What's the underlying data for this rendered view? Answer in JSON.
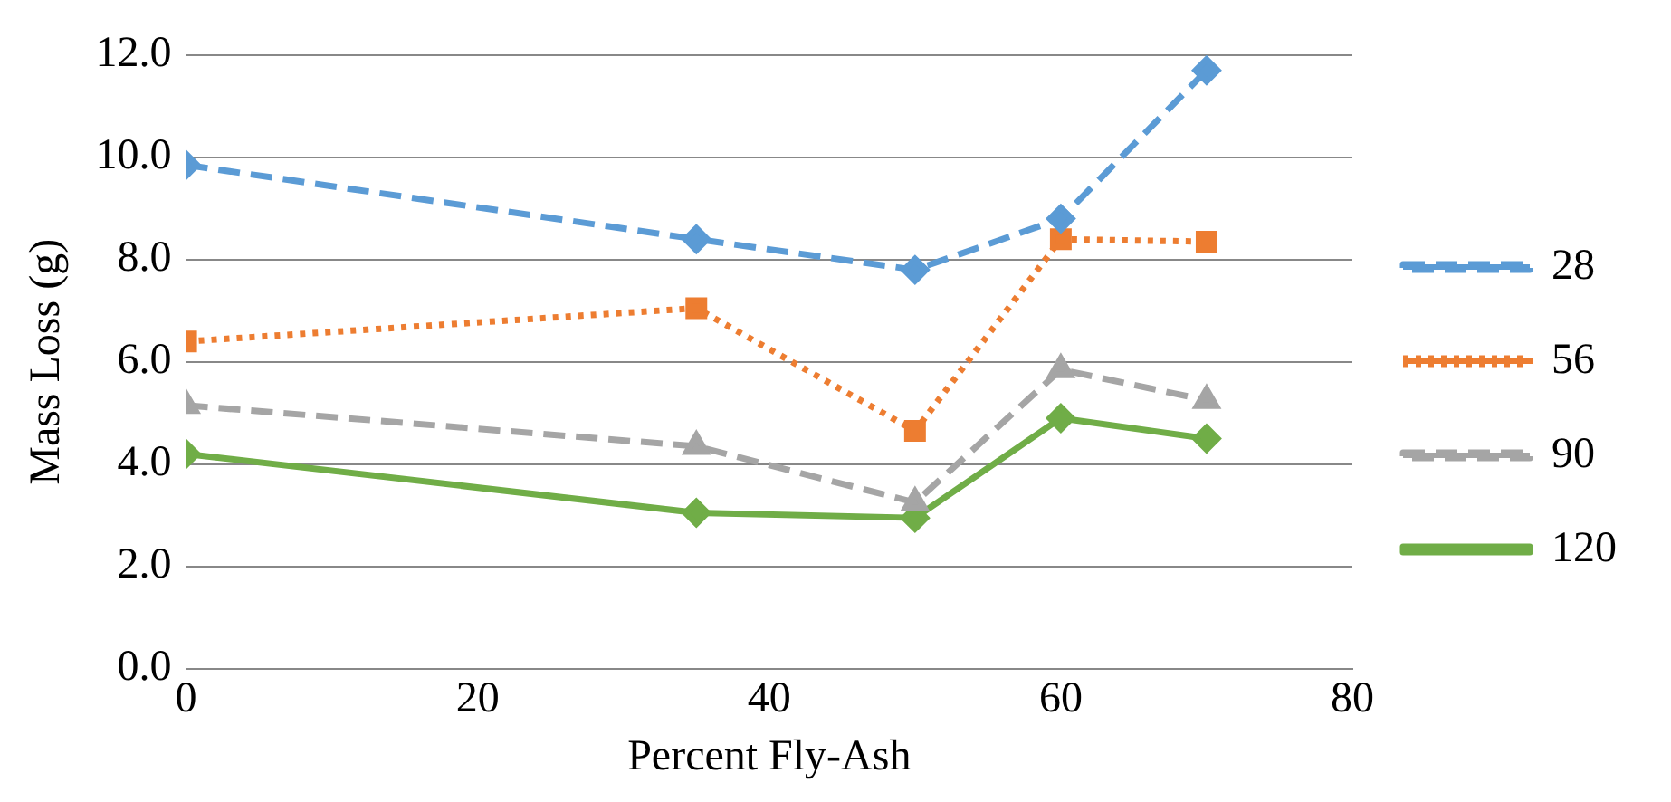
{
  "chart_data": {
    "type": "line",
    "xlabel": "Percent Fly-Ash",
    "ylabel": "Mass Loss (g)",
    "x": [
      0,
      35,
      50,
      60,
      70
    ],
    "xlim": [
      0,
      80
    ],
    "xticks": [
      0,
      20,
      40,
      60,
      80
    ],
    "ylim": [
      0,
      12
    ],
    "yticks": [
      {
        "value": 0,
        "label": "0.0"
      },
      {
        "value": 2,
        "label": "2.0"
      },
      {
        "value": 4,
        "label": "4.0"
      },
      {
        "value": 6,
        "label": "6.0"
      },
      {
        "value": 8,
        "label": "8.0"
      },
      {
        "value": 10,
        "label": "10.0"
      },
      {
        "value": 12,
        "label": "12.0"
      }
    ],
    "grid": "y",
    "legend": "right",
    "series": [
      {
        "name": "28",
        "color": "#5b9bd5",
        "values": [
          9.85,
          8.4,
          7.8,
          8.8,
          11.7
        ],
        "marker": "diamond",
        "line_style": "dashed"
      },
      {
        "name": "56",
        "color": "#ed7d31",
        "values": [
          6.4,
          7.05,
          4.65,
          8.4,
          8.35
        ],
        "marker": "square",
        "line_style": "dotted"
      },
      {
        "name": "90",
        "color": "#a5a5a5",
        "values": [
          5.15,
          4.35,
          3.25,
          5.85,
          5.25
        ],
        "marker": "triangle",
        "line_style": "dashed"
      },
      {
        "name": "120",
        "color": "#70ad47",
        "values": [
          4.2,
          3.05,
          2.95,
          4.9,
          4.5
        ],
        "marker": "diamond",
        "line_style": "solid"
      }
    ]
  }
}
